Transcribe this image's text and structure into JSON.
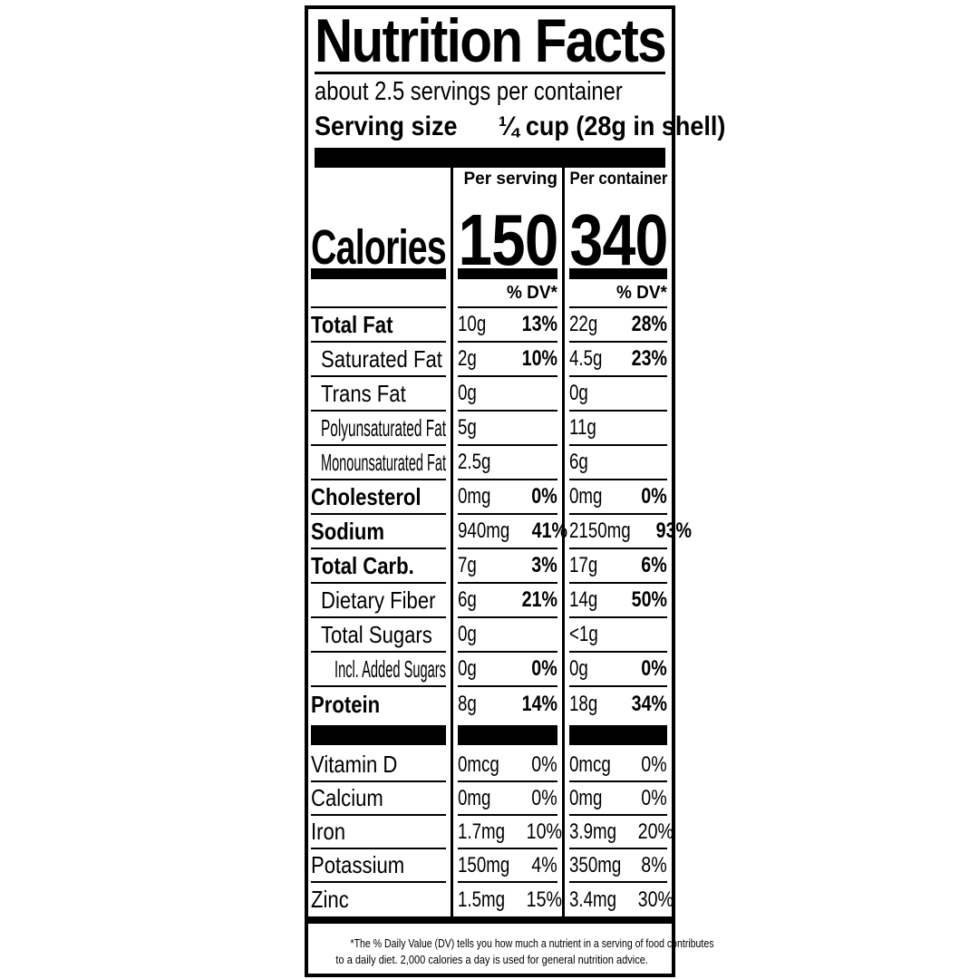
{
  "header": {
    "title": "Nutrition Facts",
    "servings_per_container": "about 2.5 servings per container",
    "serving_size_label": "Serving size",
    "serving_size_value": "¼ cup (28g in shell)"
  },
  "columns": {
    "per_serving": "Per serving",
    "per_container": "Per container",
    "dv_header": "% DV*"
  },
  "calories": {
    "label": "Calories",
    "per_serving": "150",
    "per_container": "340"
  },
  "nutrients": [
    {
      "name": "Total Fat",
      "emphasis": "bold",
      "indent": 0,
      "serving": {
        "amount": "10g",
        "dv": "13%"
      },
      "container": {
        "amount": "22g",
        "dv": "28%"
      }
    },
    {
      "name": "Saturated Fat",
      "emphasis": "regular",
      "indent": 1,
      "serving": {
        "amount": "2g",
        "dv": "10%"
      },
      "container": {
        "amount": "4.5g",
        "dv": "23%"
      }
    },
    {
      "name": "Trans Fat",
      "emphasis": "regular",
      "indent": 1,
      "serving": {
        "amount": "0g",
        "dv": ""
      },
      "container": {
        "amount": "0g",
        "dv": ""
      }
    },
    {
      "name": "Polyunsaturated Fat",
      "emphasis": "regular",
      "indent": 1,
      "serving": {
        "amount": "5g",
        "dv": ""
      },
      "container": {
        "amount": "11g",
        "dv": ""
      }
    },
    {
      "name": "Monounsaturated Fat",
      "emphasis": "regular",
      "indent": 1,
      "serving": {
        "amount": "2.5g",
        "dv": ""
      },
      "container": {
        "amount": "6g",
        "dv": ""
      }
    },
    {
      "name": "Cholesterol",
      "emphasis": "bold",
      "indent": 0,
      "serving": {
        "amount": "0mg",
        "dv": "0%"
      },
      "container": {
        "amount": "0mg",
        "dv": "0%"
      }
    },
    {
      "name": "Sodium",
      "emphasis": "bold",
      "indent": 0,
      "serving": {
        "amount": "940mg",
        "dv": "41%"
      },
      "container": {
        "amount": "2150mg",
        "dv": "93%"
      }
    },
    {
      "name": "Total Carb.",
      "emphasis": "bold",
      "indent": 0,
      "serving": {
        "amount": "7g",
        "dv": "3%"
      },
      "container": {
        "amount": "17g",
        "dv": "6%"
      }
    },
    {
      "name": "Dietary Fiber",
      "emphasis": "regular",
      "indent": 1,
      "serving": {
        "amount": "6g",
        "dv": "21%"
      },
      "container": {
        "amount": "14g",
        "dv": "50%"
      }
    },
    {
      "name": "Total Sugars",
      "emphasis": "regular",
      "indent": 1,
      "serving": {
        "amount": "0g",
        "dv": ""
      },
      "container": {
        "amount": "<1g",
        "dv": ""
      }
    },
    {
      "name": "Incl. Added Sugars",
      "emphasis": "regular",
      "indent": 2,
      "serving": {
        "amount": "0g",
        "dv": "0%"
      },
      "container": {
        "amount": "0g",
        "dv": "0%"
      }
    },
    {
      "name": "Protein",
      "emphasis": "bold",
      "indent": 0,
      "serving": {
        "amount": "8g",
        "dv": "14%"
      },
      "container": {
        "amount": "18g",
        "dv": "34%"
      }
    }
  ],
  "vitamins": [
    {
      "name": "Vitamin D",
      "serving": {
        "amount": "0mcg",
        "dv": "0%"
      },
      "container": {
        "amount": "0mcg",
        "dv": "0%"
      }
    },
    {
      "name": "Calcium",
      "serving": {
        "amount": "0mg",
        "dv": "0%"
      },
      "container": {
        "amount": "0mg",
        "dv": "0%"
      }
    },
    {
      "name": "Iron",
      "serving": {
        "amount": "1.7mg",
        "dv": "10%"
      },
      "container": {
        "amount": "3.9mg",
        "dv": "20%"
      }
    },
    {
      "name": "Potassium",
      "serving": {
        "amount": "150mg",
        "dv": "4%"
      },
      "container": {
        "amount": "350mg",
        "dv": "8%"
      }
    },
    {
      "name": "Zinc",
      "serving": {
        "amount": "1.5mg",
        "dv": "15%"
      },
      "container": {
        "amount": "3.4mg",
        "dv": "30%"
      }
    }
  ],
  "footnote": {
    "line1": "*The % Daily Value (DV) tells you how much a nutrient in a serving of food contributes",
    "line2": "to a daily diet. 2,000 calories a day is used for general nutrition advice."
  },
  "colors": {
    "ink": "#000000",
    "paper": "#ffffff"
  }
}
